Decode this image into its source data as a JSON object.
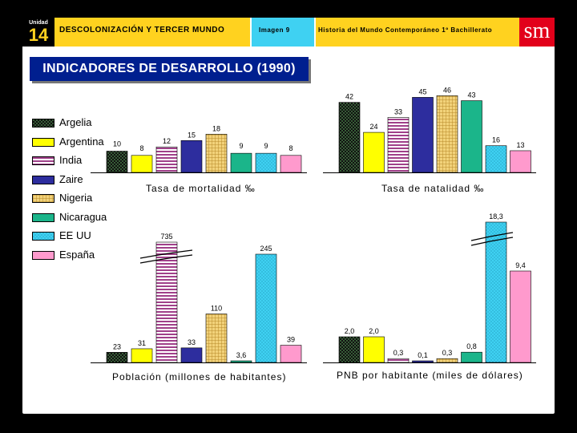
{
  "header": {
    "unit_label": "Unidad",
    "unit_number": "14",
    "topic": "DESCOLONIZACIÓN Y TERCER MUNDO",
    "image_label": "Imagen 9",
    "course": "Historia del Mundo Contemporáneo 1º Bachillerato",
    "logo": "sm",
    "colors": {
      "yellow": "#ffd21f",
      "cyan": "#3fd1f2",
      "logo_red": "#e2001a",
      "title_blue": "#001f8f"
    }
  },
  "title": "INDICADORES DE DESARROLLO (1990)",
  "legend": [
    {
      "label": "Argelia",
      "color": "#111111",
      "pattern": "dots"
    },
    {
      "label": "Argentina",
      "color": "#ffff00",
      "pattern": "solid"
    },
    {
      "label": "India",
      "color": "#a0408a",
      "pattern": "hstripes"
    },
    {
      "label": "Zaire",
      "color": "#2d2d9e",
      "pattern": "solid"
    },
    {
      "label": "Nigeria",
      "color": "#d4a84a",
      "pattern": "grid"
    },
    {
      "label": "Nicaragua",
      "color": "#1bb58a",
      "pattern": "solid"
    },
    {
      "label": "EE UU",
      "color": "#3fd1f2",
      "pattern": "dots"
    },
    {
      "label": "España",
      "color": "#ff9acd",
      "pattern": "solid"
    }
  ],
  "chart_data": [
    {
      "type": "bar",
      "title": "Tasa de mortalidad ‰",
      "categories": [
        "Argelia",
        "Argentina",
        "India",
        "Zaire",
        "Nigeria",
        "Nicaragua",
        "EE UU",
        "España"
      ],
      "values": [
        10,
        8,
        12,
        15,
        18,
        9,
        9,
        8
      ],
      "value_labels": [
        "10",
        "8",
        "12",
        "15",
        "18",
        "9",
        "9",
        "8"
      ],
      "ylim": [
        0,
        18
      ]
    },
    {
      "type": "bar",
      "title": "Tasa de natalidad ‰",
      "categories": [
        "Argelia",
        "Argentina",
        "India",
        "Zaire",
        "Nigeria",
        "Nicaragua",
        "EE UU",
        "España"
      ],
      "values": [
        42,
        24,
        33,
        45,
        46,
        43,
        16,
        13
      ],
      "value_labels": [
        "42",
        "24",
        "33",
        "45",
        "46",
        "43",
        "16",
        "13"
      ],
      "ylim": [
        0,
        46
      ]
    },
    {
      "type": "bar",
      "title": "Población (millones de habitantes)",
      "categories": [
        "Argelia",
        "Argentina",
        "India",
        "Zaire",
        "Nigeria",
        "Nicaragua",
        "EE UU",
        "España"
      ],
      "values": [
        23,
        31,
        735,
        33,
        110,
        3.6,
        245,
        39
      ],
      "value_labels": [
        "23",
        "31",
        "735",
        "33",
        "110",
        "3,6",
        "245",
        "39"
      ],
      "axis_break": true
    },
    {
      "type": "bar",
      "title": "PNB por habitante (miles de dólares)",
      "categories": [
        "Argelia",
        "Argentina",
        "India",
        "Zaire",
        "Nigeria",
        "Nicaragua",
        "EE UU",
        "España"
      ],
      "values": [
        2.0,
        2.0,
        0.3,
        0.1,
        0.3,
        0.8,
        18.3,
        9.4
      ],
      "value_labels": [
        "2,0",
        "2,0",
        "0,3",
        "0,1",
        "0,3",
        "0,8",
        "18,3",
        "9,4"
      ],
      "axis_break": true
    }
  ]
}
